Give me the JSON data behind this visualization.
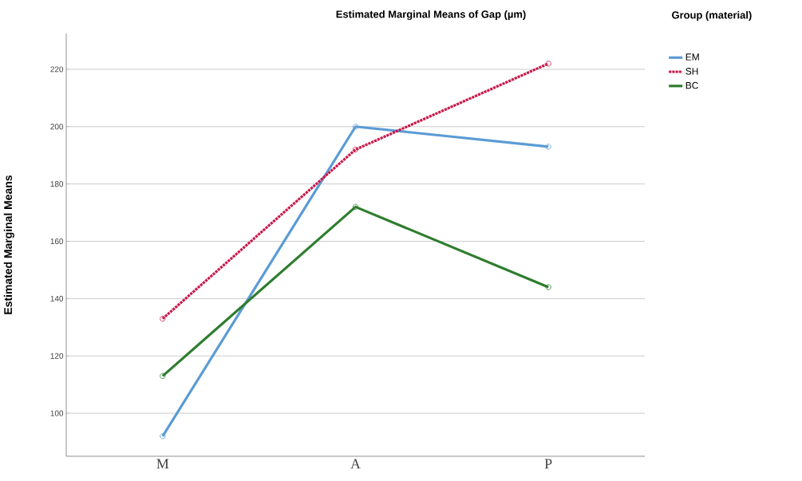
{
  "chart_data": {
    "type": "line",
    "title": "Estimated Marginal Means of Gap (µm)",
    "ylabel": "Estimated Marginal Means",
    "legend_title": "Group (material)",
    "categories": [
      "M",
      "A",
      "P"
    ],
    "series": [
      {
        "name": "EM",
        "color": "#5b9bd5",
        "values": [
          92,
          200,
          193
        ],
        "line_style": "solid"
      },
      {
        "name": "SH",
        "color": "#c8194b",
        "values": [
          133,
          192,
          222
        ],
        "line_style": "dotted"
      },
      {
        "name": "BC",
        "color": "#2e7d2e",
        "values": [
          113,
          172,
          144
        ],
        "line_style": "solid"
      }
    ],
    "ylim": [
      85,
      232.5
    ],
    "yticks": [
      100,
      120,
      140,
      160,
      180,
      200,
      220
    ],
    "grid": "y",
    "legend": "top right",
    "marker": "circle"
  }
}
